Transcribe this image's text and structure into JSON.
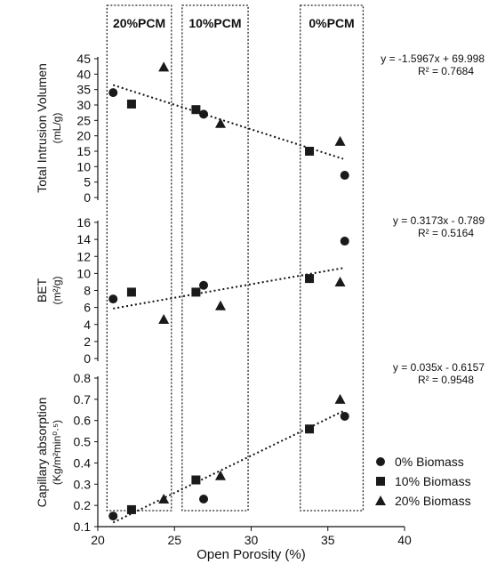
{
  "chart_data": [
    {
      "type": "scatter",
      "panel": "top",
      "ylabel": "Total Intrusion Volumen",
      "yunit": "(mL/g)",
      "ylim": [
        0,
        45
      ],
      "yticks": [
        "0",
        "5",
        "10",
        "15",
        "20",
        "25",
        "30",
        "35",
        "40",
        "45"
      ],
      "series": [
        {
          "name": "0%  Biomass",
          "points": [
            [
              21.0,
              34.0
            ],
            [
              26.9,
              27.0
            ],
            [
              36.1,
              7.2
            ]
          ]
        },
        {
          "name": "10% Biomass",
          "points": [
            [
              22.2,
              30.3
            ],
            [
              26.4,
              28.5
            ],
            [
              33.8,
              15.0
            ]
          ]
        },
        {
          "name": "20% Biomass",
          "points": [
            [
              24.3,
              42.3
            ],
            [
              28.0,
              24.0
            ],
            [
              35.8,
              18.2
            ]
          ]
        }
      ],
      "trendline": {
        "x": [
          21.0,
          36.0
        ],
        "equation": "y = -1.5967x + 69.998",
        "r2": "R² = 0.7684"
      }
    },
    {
      "type": "scatter",
      "panel": "middle",
      "ylabel": "BET",
      "yunit": "(m²/g)",
      "ylim": [
        0,
        16
      ],
      "yticks": [
        "0",
        "2",
        "4",
        "6",
        "8",
        "10",
        "12",
        "14",
        "16"
      ],
      "series": [
        {
          "name": "0%  Biomass",
          "points": [
            [
              21.0,
              7.0
            ],
            [
              26.9,
              8.6
            ],
            [
              36.1,
              13.8
            ]
          ]
        },
        {
          "name": "10% Biomass",
          "points": [
            [
              22.2,
              7.8
            ],
            [
              26.4,
              7.8
            ],
            [
              33.8,
              9.4
            ]
          ]
        },
        {
          "name": "20% Biomass",
          "points": [
            [
              24.3,
              4.6
            ],
            [
              28.0,
              6.2
            ],
            [
              35.8,
              9.0
            ]
          ]
        }
      ],
      "trendline": {
        "x": [
          21.0,
          36.0
        ],
        "equation": "y = 0.3173x - 0.789",
        "r2": "R² = 0.5164"
      }
    },
    {
      "type": "scatter",
      "panel": "bottom",
      "ylabel": "Capillary absorption",
      "yunit": "(Kg/m²min⁰·⁵)",
      "ylim": [
        0.1,
        0.8
      ],
      "yticks": [
        "0.1",
        "0.2",
        "0.3",
        "0.4",
        "0.5",
        "0.6",
        "0.7",
        "0.8"
      ],
      "series": [
        {
          "name": "0%  Biomass",
          "points": [
            [
              21.0,
              0.15
            ],
            [
              26.9,
              0.23
            ],
            [
              36.1,
              0.62
            ]
          ]
        },
        {
          "name": "10% Biomass",
          "points": [
            [
              22.2,
              0.18
            ],
            [
              26.4,
              0.32
            ],
            [
              33.8,
              0.56
            ]
          ]
        },
        {
          "name": "20% Biomass",
          "points": [
            [
              24.3,
              0.23
            ],
            [
              28.0,
              0.34
            ],
            [
              35.8,
              0.7
            ]
          ]
        }
      ],
      "trendline": {
        "x": [
          21.0,
          36.0
        ],
        "equation": "y = 0.035x - 0.6157",
        "r2": "R² = 0.9548"
      }
    }
  ],
  "xaxis": {
    "label": "Open Porosity (%)",
    "range": [
      20,
      40
    ],
    "ticks": [
      "20",
      "25",
      "30",
      "35",
      "40"
    ]
  },
  "groups": [
    {
      "label": "20%PCM",
      "xrange": [
        20.6,
        24.8
      ]
    },
    {
      "label": "10%PCM",
      "xrange": [
        25.5,
        29.8
      ]
    },
    {
      "label": "0%PCM",
      "xrange": [
        33.2,
        37.3
      ]
    }
  ],
  "legend": {
    "placement": "right",
    "entries": [
      {
        "marker": "circle",
        "label": "0%   Biomass"
      },
      {
        "marker": "square",
        "label": "10% Biomass"
      },
      {
        "marker": "triangle",
        "label": "20% Biomass"
      }
    ]
  },
  "colors": {
    "marker": "#1a1a1a",
    "axis": "#111111",
    "trend": "#111111"
  }
}
